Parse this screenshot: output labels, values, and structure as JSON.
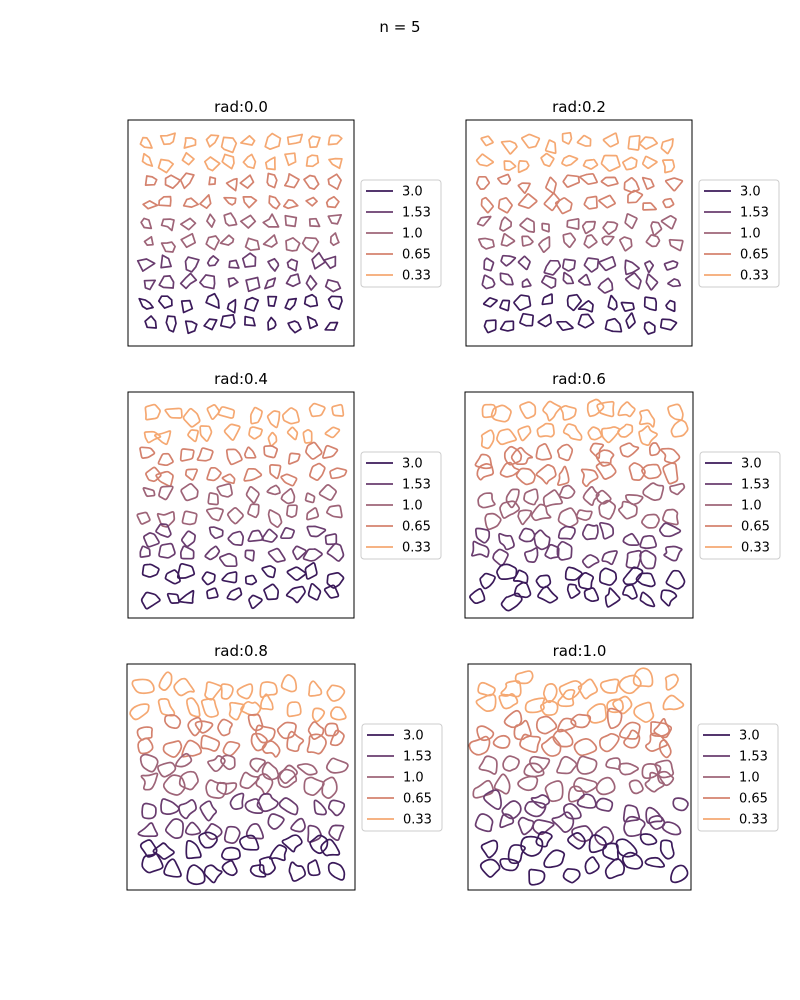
{
  "figure": {
    "title": "n = 5"
  },
  "chart_data": [
    {
      "type": "line",
      "title": "rad:0.0",
      "rad": 0.0,
      "grid": false,
      "xticks": false,
      "yticks": false,
      "legend_placement": "outside-right"
    },
    {
      "type": "line",
      "title": "rad:0.2",
      "rad": 0.2,
      "grid": false,
      "xticks": false,
      "yticks": false,
      "legend_placement": "outside-right"
    },
    {
      "type": "line",
      "title": "rad:0.4",
      "rad": 0.4,
      "grid": false,
      "xticks": false,
      "yticks": false,
      "legend_placement": "outside-right"
    },
    {
      "type": "line",
      "title": "rad:0.6",
      "rad": 0.6,
      "grid": false,
      "xticks": false,
      "yticks": false,
      "legend_placement": "outside-right"
    },
    {
      "type": "line",
      "title": "rad:0.8",
      "rad": 0.8,
      "grid": false,
      "xticks": false,
      "yticks": false,
      "legend_placement": "outside-right"
    },
    {
      "type": "line",
      "title": "rad:1.0",
      "rad": 1.0,
      "grid": false,
      "xticks": false,
      "yticks": false,
      "legend_placement": "outside-right"
    }
  ],
  "legend": {
    "entries": [
      {
        "name": "3.0",
        "color": "#3b1a5a"
      },
      {
        "name": "1.53",
        "color": "#6a3d6f"
      },
      {
        "name": "1.0",
        "color": "#9e6478"
      },
      {
        "name": "0.65",
        "color": "#d4826e"
      },
      {
        "name": "0.33",
        "color": "#f5a872"
      }
    ]
  }
}
